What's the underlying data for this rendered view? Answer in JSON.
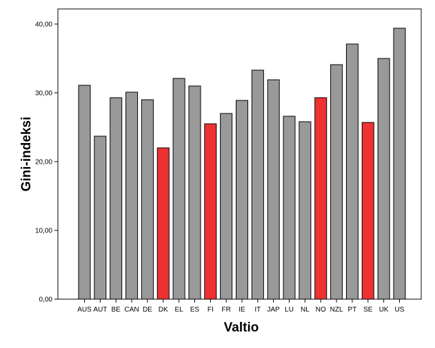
{
  "chart_data": {
    "type": "bar",
    "xlabel": "Valtio",
    "ylabel": "Gini-indeksi",
    "ylim": [
      0,
      40
    ],
    "yticks": [
      0,
      10,
      20,
      30,
      40
    ],
    "ytick_labels": [
      "0,00",
      "10,00",
      "20,00",
      "30,00",
      "40,00"
    ],
    "categories": [
      "AUS",
      "AUT",
      "BE",
      "CAN",
      "DE",
      "DK",
      "EL",
      "ES",
      "FI",
      "FR",
      "IE",
      "IT",
      "JAP",
      "LU",
      "NL",
      "NO",
      "NZL",
      "PT",
      "SE",
      "UK",
      "US"
    ],
    "values": [
      31.1,
      23.7,
      29.3,
      30.1,
      29.0,
      22.0,
      32.1,
      31.0,
      25.5,
      27.0,
      28.9,
      33.3,
      31.9,
      26.6,
      25.8,
      29.3,
      34.1,
      37.1,
      25.7,
      35.0,
      39.4
    ],
    "highlighted": [
      "DK",
      "FI",
      "NO",
      "SE"
    ],
    "colors": {
      "default": "#999999",
      "highlight": "#ee3232",
      "outline": "#000000",
      "background": "#ffffff"
    },
    "grid": false,
    "legend": "none"
  }
}
